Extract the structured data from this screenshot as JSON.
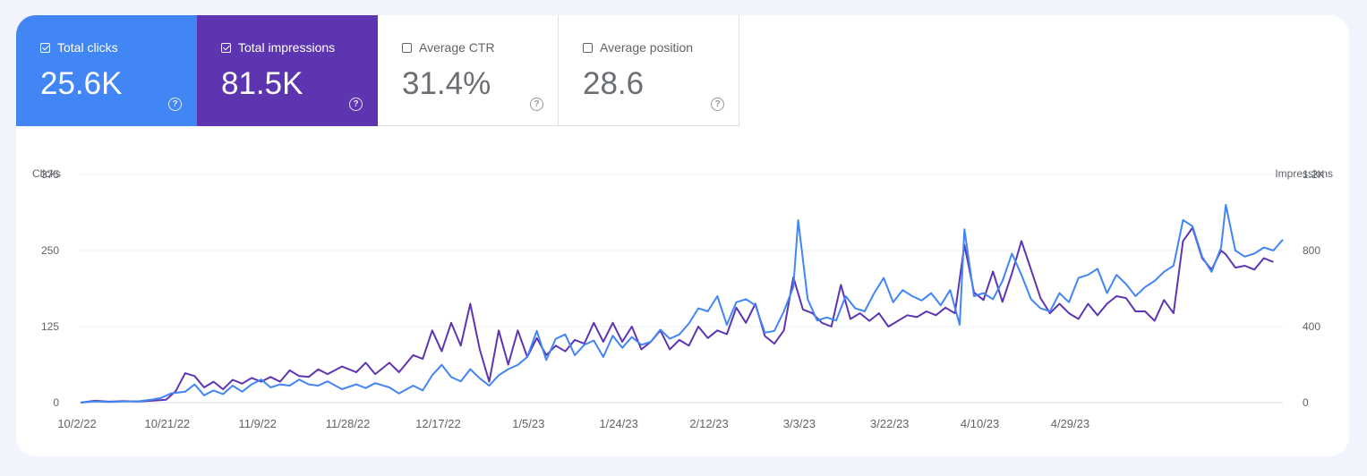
{
  "metrics": [
    {
      "label": "Total clicks",
      "value": "25.6K",
      "checked": true,
      "help_icon": "help-circle-icon"
    },
    {
      "label": "Total impressions",
      "value": "81.5K",
      "checked": true,
      "help_icon": "help-circle-icon"
    },
    {
      "label": "Average CTR",
      "value": "31.4%",
      "checked": false,
      "help_icon": "help-circle-icon"
    },
    {
      "label": "Average position",
      "value": "28.6",
      "checked": false,
      "help_icon": "help-circle-icon"
    }
  ],
  "colors": {
    "clicks": "#4285f4",
    "impressions": "#5e35b1"
  },
  "chart_data": {
    "type": "line",
    "ylabel_left": "Clicks",
    "ylabel_right": "Impressions",
    "y_left_ticks": [
      "0",
      "125",
      "250",
      "375"
    ],
    "y_right_ticks": [
      "0",
      "400",
      "800",
      "1.2K"
    ],
    "ylim_left": [
      0,
      375
    ],
    "ylim_right": [
      0,
      1200
    ],
    "grid": true,
    "legend": "none",
    "x_tick_labels": [
      "10/2/22",
      "10/21/22",
      "11/9/22",
      "11/28/22",
      "12/17/22",
      "1/5/23",
      "1/24/23",
      "2/12/23",
      "3/3/23",
      "3/22/23",
      "4/10/23",
      "4/29/23"
    ],
    "x_tick_day_index": [
      0,
      19,
      38,
      57,
      76,
      95,
      114,
      133,
      152,
      171,
      190,
      209
    ],
    "x_start": "10/2/22",
    "x_end": "5/14/23",
    "series": [
      {
        "name": "Clicks",
        "axis": "left",
        "points": [
          [
            0,
            0
          ],
          [
            3,
            2
          ],
          [
            6,
            1
          ],
          [
            9,
            2
          ],
          [
            12,
            2
          ],
          [
            15,
            5
          ],
          [
            17,
            8
          ],
          [
            19,
            15
          ],
          [
            22,
            18
          ],
          [
            24,
            30
          ],
          [
            26,
            12
          ],
          [
            28,
            20
          ],
          [
            30,
            14
          ],
          [
            32,
            28
          ],
          [
            34,
            18
          ],
          [
            36,
            30
          ],
          [
            38,
            38
          ],
          [
            40,
            25
          ],
          [
            42,
            30
          ],
          [
            44,
            28
          ],
          [
            46,
            38
          ],
          [
            48,
            30
          ],
          [
            50,
            28
          ],
          [
            52,
            35
          ],
          [
            55,
            22
          ],
          [
            58,
            30
          ],
          [
            60,
            24
          ],
          [
            62,
            32
          ],
          [
            65,
            25
          ],
          [
            67,
            15
          ],
          [
            70,
            28
          ],
          [
            72,
            20
          ],
          [
            74,
            45
          ],
          [
            76,
            62
          ],
          [
            78,
            42
          ],
          [
            80,
            35
          ],
          [
            82,
            55
          ],
          [
            84,
            40
          ],
          [
            86,
            28
          ],
          [
            88,
            45
          ],
          [
            90,
            55
          ],
          [
            92,
            62
          ],
          [
            94,
            75
          ],
          [
            96,
            118
          ],
          [
            98,
            70
          ],
          [
            100,
            105
          ],
          [
            102,
            112
          ],
          [
            104,
            78
          ],
          [
            106,
            95
          ],
          [
            108,
            102
          ],
          [
            110,
            75
          ],
          [
            112,
            110
          ],
          [
            114,
            90
          ],
          [
            116,
            108
          ],
          [
            118,
            95
          ],
          [
            120,
            100
          ],
          [
            122,
            120
          ],
          [
            124,
            105
          ],
          [
            126,
            112
          ],
          [
            128,
            130
          ],
          [
            130,
            155
          ],
          [
            132,
            150
          ],
          [
            134,
            175
          ],
          [
            136,
            128
          ],
          [
            138,
            165
          ],
          [
            140,
            170
          ],
          [
            142,
            160
          ],
          [
            144,
            115
          ],
          [
            146,
            118
          ],
          [
            148,
            150
          ],
          [
            150,
            190
          ],
          [
            151,
            300
          ],
          [
            153,
            170
          ],
          [
            155,
            135
          ],
          [
            157,
            140
          ],
          [
            159,
            135
          ],
          [
            161,
            175
          ],
          [
            163,
            155
          ],
          [
            165,
            150
          ],
          [
            167,
            180
          ],
          [
            169,
            205
          ],
          [
            171,
            165
          ],
          [
            173,
            185
          ],
          [
            175,
            175
          ],
          [
            177,
            168
          ],
          [
            179,
            180
          ],
          [
            181,
            160
          ],
          [
            183,
            185
          ],
          [
            185,
            128
          ],
          [
            186,
            285
          ],
          [
            188,
            175
          ],
          [
            190,
            180
          ],
          [
            192,
            170
          ],
          [
            194,
            200
          ],
          [
            196,
            245
          ],
          [
            198,
            210
          ],
          [
            200,
            170
          ],
          [
            202,
            155
          ],
          [
            204,
            150
          ],
          [
            206,
            180
          ],
          [
            208,
            165
          ],
          [
            210,
            205
          ],
          [
            212,
            210
          ],
          [
            214,
            220
          ],
          [
            216,
            180
          ],
          [
            218,
            210
          ],
          [
            220,
            195
          ],
          [
            222,
            175
          ],
          [
            224,
            190
          ],
          [
            226,
            200
          ],
          [
            228,
            215
          ],
          [
            230,
            225
          ],
          [
            232,
            300
          ],
          [
            234,
            290
          ],
          [
            236,
            240
          ],
          [
            238,
            215
          ],
          [
            240,
            255
          ],
          [
            241,
            325
          ],
          [
            243,
            250
          ],
          [
            245,
            240
          ],
          [
            247,
            245
          ],
          [
            249,
            255
          ],
          [
            251,
            250
          ],
          [
            253,
            268
          ]
        ]
      },
      {
        "name": "Impressions",
        "axis": "right",
        "points": [
          [
            0,
            0
          ],
          [
            3,
            10
          ],
          [
            6,
            5
          ],
          [
            9,
            8
          ],
          [
            12,
            6
          ],
          [
            15,
            10
          ],
          [
            18,
            15
          ],
          [
            20,
            60
          ],
          [
            22,
            155
          ],
          [
            24,
            140
          ],
          [
            26,
            80
          ],
          [
            28,
            110
          ],
          [
            30,
            70
          ],
          [
            32,
            120
          ],
          [
            34,
            100
          ],
          [
            36,
            130
          ],
          [
            38,
            110
          ],
          [
            40,
            135
          ],
          [
            42,
            110
          ],
          [
            44,
            170
          ],
          [
            46,
            140
          ],
          [
            48,
            135
          ],
          [
            50,
            175
          ],
          [
            52,
            150
          ],
          [
            55,
            190
          ],
          [
            58,
            160
          ],
          [
            60,
            210
          ],
          [
            62,
            150
          ],
          [
            65,
            210
          ],
          [
            67,
            160
          ],
          [
            70,
            250
          ],
          [
            72,
            230
          ],
          [
            74,
            380
          ],
          [
            76,
            270
          ],
          [
            78,
            420
          ],
          [
            80,
            300
          ],
          [
            82,
            520
          ],
          [
            84,
            280
          ],
          [
            86,
            110
          ],
          [
            88,
            380
          ],
          [
            90,
            200
          ],
          [
            92,
            380
          ],
          [
            94,
            240
          ],
          [
            96,
            340
          ],
          [
            98,
            250
          ],
          [
            100,
            300
          ],
          [
            102,
            270
          ],
          [
            104,
            330
          ],
          [
            106,
            310
          ],
          [
            108,
            420
          ],
          [
            110,
            320
          ],
          [
            112,
            420
          ],
          [
            114,
            320
          ],
          [
            116,
            400
          ],
          [
            118,
            280
          ],
          [
            120,
            320
          ],
          [
            122,
            380
          ],
          [
            124,
            280
          ],
          [
            126,
            330
          ],
          [
            128,
            300
          ],
          [
            130,
            400
          ],
          [
            132,
            340
          ],
          [
            134,
            380
          ],
          [
            136,
            360
          ],
          [
            138,
            500
          ],
          [
            140,
            420
          ],
          [
            142,
            520
          ],
          [
            144,
            350
          ],
          [
            146,
            310
          ],
          [
            148,
            380
          ],
          [
            150,
            660
          ],
          [
            152,
            490
          ],
          [
            154,
            470
          ],
          [
            156,
            420
          ],
          [
            158,
            400
          ],
          [
            160,
            620
          ],
          [
            162,
            440
          ],
          [
            164,
            470
          ],
          [
            166,
            430
          ],
          [
            168,
            470
          ],
          [
            170,
            400
          ],
          [
            172,
            430
          ],
          [
            174,
            460
          ],
          [
            176,
            450
          ],
          [
            178,
            480
          ],
          [
            180,
            460
          ],
          [
            182,
            500
          ],
          [
            184,
            470
          ],
          [
            186,
            830
          ],
          [
            188,
            580
          ],
          [
            190,
            540
          ],
          [
            192,
            690
          ],
          [
            194,
            530
          ],
          [
            196,
            680
          ],
          [
            198,
            850
          ],
          [
            200,
            700
          ],
          [
            202,
            550
          ],
          [
            204,
            470
          ],
          [
            206,
            520
          ],
          [
            208,
            470
          ],
          [
            210,
            440
          ],
          [
            212,
            520
          ],
          [
            214,
            460
          ],
          [
            216,
            520
          ],
          [
            218,
            560
          ],
          [
            220,
            550
          ],
          [
            222,
            480
          ],
          [
            224,
            480
          ],
          [
            226,
            430
          ],
          [
            228,
            540
          ],
          [
            230,
            470
          ],
          [
            232,
            850
          ],
          [
            234,
            920
          ],
          [
            236,
            760
          ],
          [
            238,
            700
          ],
          [
            240,
            800
          ],
          [
            241,
            780
          ],
          [
            243,
            710
          ],
          [
            245,
            720
          ],
          [
            247,
            700
          ],
          [
            249,
            760
          ],
          [
            251,
            740
          ]
        ]
      }
    ]
  }
}
